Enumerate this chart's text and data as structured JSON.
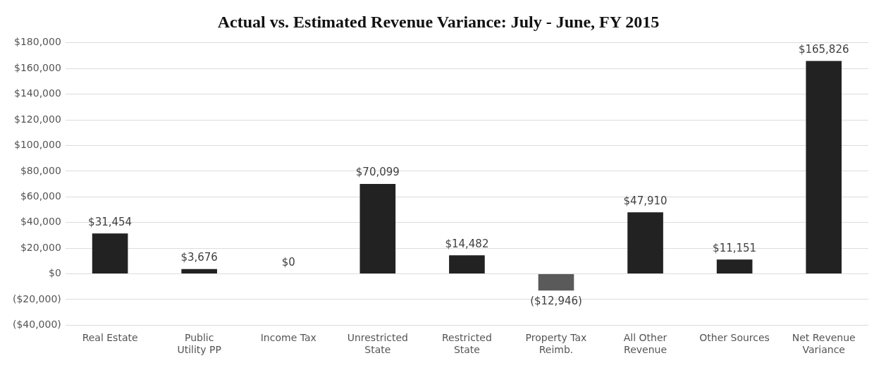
{
  "chart_data": {
    "type": "bar",
    "title": "Actual vs. Estimated Revenue Variance: July - June, FY 2015",
    "categories": [
      "Real Estate",
      "Public Utility PP",
      "Income Tax",
      "Unrestricted State",
      "Restricted State",
      "Property Tax Reimb.",
      "All Other Revenue",
      "Other Sources",
      "Net Revenue Variance"
    ],
    "values": [
      31454,
      3676,
      0,
      70099,
      14482,
      -12946,
      47910,
      11151,
      165826
    ],
    "colors": [
      "#222222",
      "#222222",
      "#222222",
      "#222222",
      "#222222",
      "#5a5a5a",
      "#222222",
      "#222222",
      "#222222"
    ],
    "value_labels": [
      "$31,454",
      "$3,676",
      "$0",
      "$70,099",
      "$14,482",
      "($12,946)",
      "$47,910",
      "$11,151",
      "$165,826"
    ],
    "ylim": [
      -40000,
      180000
    ],
    "yticks": [
      {
        "value": -40000,
        "label": "($40,000)"
      },
      {
        "value": -20000,
        "label": "($20,000)"
      },
      {
        "value": 0,
        "label": "$0"
      },
      {
        "value": 20000,
        "label": "$20,000"
      },
      {
        "value": 40000,
        "label": "$40,000"
      },
      {
        "value": 60000,
        "label": "$60,000"
      },
      {
        "value": 80000,
        "label": "$80,000"
      },
      {
        "value": 100000,
        "label": "$100,000"
      },
      {
        "value": 120000,
        "label": "$120,000"
      },
      {
        "value": 140000,
        "label": "$140,000"
      },
      {
        "value": 160000,
        "label": "$160,000"
      },
      {
        "value": 180000,
        "label": "$180,000"
      }
    ],
    "grid": "y",
    "legend": false
  }
}
